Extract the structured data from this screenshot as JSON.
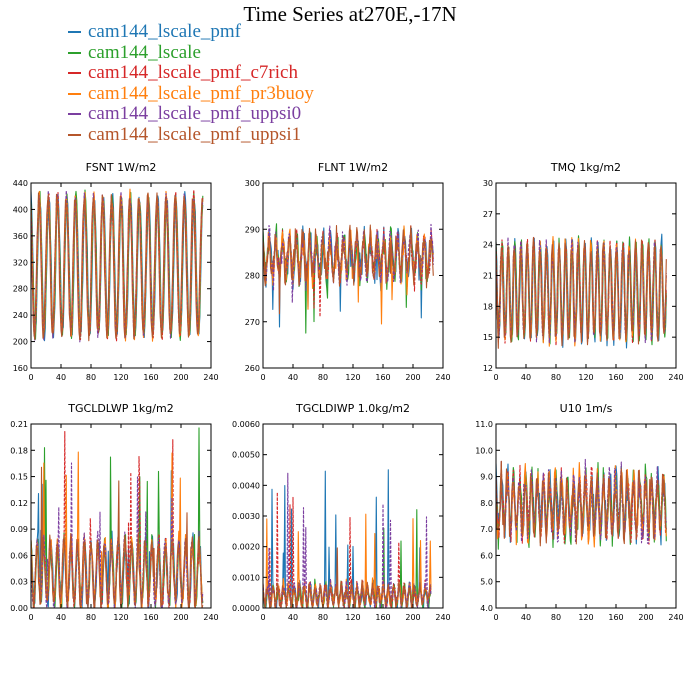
{
  "title": "Time Series at270E,-17N",
  "legend": [
    {
      "label": "cam144_lscale_pmf",
      "color": "#1f77b4"
    },
    {
      "label": "cam144_lscale",
      "color": "#2ca02c"
    },
    {
      "label": "cam144_lscale_pmf_c7rich",
      "color": "#d62728"
    },
    {
      "label": "cam144_lscale_pmf_pr3buoy",
      "color": "#ff7f0e"
    },
    {
      "label": "cam144_lscale_pmf_uppsi0",
      "color": "#7b3fa0"
    },
    {
      "label": "cam144_lscale_pmf_uppsi1",
      "color": "#b5562b"
    }
  ],
  "chart_data": [
    {
      "type": "line",
      "title": "FSNT   1W/m2",
      "xlim": [
        0,
        240
      ],
      "ylim": [
        160,
        440
      ],
      "xticks": [
        "0",
        "40",
        "80",
        "120",
        "160",
        "200",
        "240"
      ],
      "yticks": [
        "160",
        "200",
        "240",
        "280",
        "320",
        "360",
        "400",
        "440"
      ],
      "series_generator": {
        "n": 230,
        "period": 12.1,
        "center": 315,
        "amplitude": 105,
        "noise": 14,
        "spike_prob": 0.0,
        "spike_size": 0
      }
    },
    {
      "type": "line",
      "title": "FLNT   1W/m2",
      "xlim": [
        0,
        240
      ],
      "ylim": [
        260,
        300
      ],
      "xticks": [
        "0",
        "40",
        "80",
        "120",
        "160",
        "200",
        "240"
      ],
      "yticks": [
        "260",
        "270",
        "280",
        "290",
        "300"
      ],
      "series_generator": {
        "n": 228,
        "period": 9,
        "center": 284,
        "amplitude": 4,
        "noise": 3.5,
        "spike_prob": 0.02,
        "spike_size": -8
      }
    },
    {
      "type": "line",
      "title": "TMQ   1kg/m2",
      "xlim": [
        0,
        240
      ],
      "ylim": [
        12,
        30
      ],
      "xticks": [
        "0",
        "40",
        "80",
        "120",
        "160",
        "200",
        "240"
      ],
      "yticks": [
        "12",
        "15",
        "18",
        "21",
        "24",
        "27",
        "30"
      ],
      "series_generator": {
        "n": 228,
        "period": 8.5,
        "center": 19.5,
        "amplitude": 4.5,
        "noise": 1.2,
        "spike_prob": 0.0,
        "spike_size": 0
      }
    },
    {
      "type": "line",
      "title": "TGCLDLWP   1kg/m2",
      "xlim": [
        0,
        240
      ],
      "ylim": [
        0.0,
        0.21
      ],
      "xticks": [
        "0",
        "40",
        "80",
        "120",
        "160",
        "200",
        "240"
      ],
      "yticks": [
        "0.00",
        "0.03",
        "0.06",
        "0.09",
        "0.12",
        "0.15",
        "0.18",
        "0.21"
      ],
      "series_generator": {
        "n": 230,
        "period": 9,
        "center": 0.04,
        "amplitude": 0.035,
        "noise": 0.015,
        "spike_prob": 0.03,
        "spike_size": 0.09,
        "floor": 0.0
      }
    },
    {
      "type": "line",
      "title": "TGCLDIWP   1.0kg/m2",
      "xlim": [
        0,
        240
      ],
      "ylim": [
        0.0,
        0.006
      ],
      "xticks": [
        "0",
        "40",
        "80",
        "120",
        "160",
        "200",
        "240"
      ],
      "yticks": [
        "0.0000",
        "0.0010",
        "0.0020",
        "0.0030",
        "0.0040",
        "0.0050",
        "0.0060"
      ],
      "series_generator": {
        "n": 225,
        "period": 7,
        "center": 0.0004,
        "amplitude": 0.0003,
        "noise": 0.0003,
        "spike_prob": 0.03,
        "spike_size": 0.0025,
        "floor": 0.0
      }
    },
    {
      "type": "line",
      "title": "U10   1m/s",
      "xlim": [
        0,
        240
      ],
      "ylim": [
        4.0,
        11.0
      ],
      "xticks": [
        "0",
        "40",
        "80",
        "120",
        "160",
        "200",
        "240"
      ],
      "yticks": [
        "4.0",
        "5.0",
        "6.0",
        "7.0",
        "8.0",
        "9.0",
        "10.0",
        "11.0"
      ],
      "series_generator": {
        "n": 228,
        "period": 8,
        "center": 7.9,
        "amplitude": 1.0,
        "noise": 0.8,
        "spike_prob": 0.0,
        "spike_size": 0
      }
    }
  ]
}
